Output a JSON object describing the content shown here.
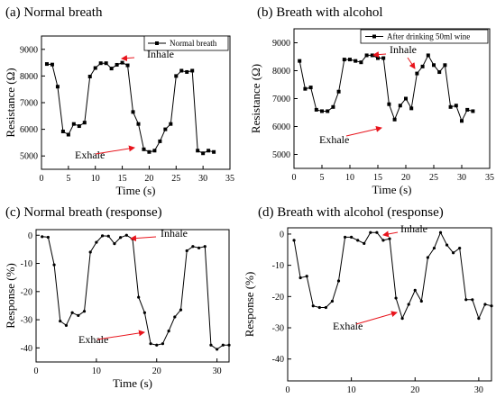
{
  "chart_data": [
    {
      "type": "line",
      "title": "(a) Normal breath",
      "xlabel": "Time (s)",
      "ylabel": "Resistance (Ω)",
      "xlim": [
        0,
        35
      ],
      "ylim": [
        4500,
        9500
      ],
      "xticks": [
        0,
        5,
        10,
        15,
        20,
        25,
        30,
        35
      ],
      "yticks": [
        5000,
        6000,
        7000,
        8000,
        9000
      ],
      "legend": "top-right",
      "series": [
        {
          "name": "Normal breath",
          "x": [
            1,
            2,
            3,
            4,
            5,
            6,
            7,
            8,
            9,
            10,
            11,
            12,
            13,
            14,
            15,
            16,
            17,
            18,
            19,
            20,
            21,
            22,
            23,
            24,
            25,
            26,
            27,
            28,
            29,
            30,
            31,
            32
          ],
          "y": [
            8450,
            8430,
            7600,
            5920,
            5800,
            6200,
            6120,
            6250,
            7980,
            8300,
            8480,
            8480,
            8280,
            8420,
            8500,
            8400,
            6650,
            6200,
            5250,
            5150,
            5200,
            5550,
            6000,
            6200,
            8000,
            8200,
            8150,
            8200,
            5200,
            5100,
            5200,
            5150
          ]
        }
      ],
      "annotations": [
        "Inhale",
        "Exhale"
      ]
    },
    {
      "type": "line",
      "title": "(b) Breath with alcohol",
      "xlabel": "Time (s)",
      "ylabel": "Resistance (Ω)",
      "xlim": [
        0,
        35
      ],
      "ylim": [
        4500,
        9500
      ],
      "xticks": [
        0,
        5,
        10,
        15,
        20,
        25,
        30,
        35
      ],
      "yticks": [
        5000,
        6000,
        7000,
        8000,
        9000
      ],
      "legend": "top-right",
      "series": [
        {
          "name": "After drinking 50ml wine",
          "x": [
            1,
            2,
            3,
            4,
            5,
            6,
            7,
            8,
            9,
            10,
            11,
            12,
            13,
            14,
            15,
            16,
            17,
            18,
            19,
            20,
            21,
            22,
            23,
            24,
            25,
            26,
            27,
            28,
            29,
            30,
            31,
            32
          ],
          "y": [
            8350,
            7350,
            7400,
            6600,
            6550,
            6550,
            6700,
            7250,
            8400,
            8400,
            8350,
            8300,
            8550,
            8550,
            8450,
            8450,
            6800,
            6250,
            6750,
            7000,
            6650,
            7900,
            8150,
            8550,
            8200,
            7950,
            8200,
            6700,
            6750,
            6200,
            6600,
            6550
          ]
        }
      ],
      "annotations": [
        "Inhale",
        "Exhale"
      ]
    },
    {
      "type": "line",
      "title": "(c) Normal breath (response)",
      "xlabel": "Time (s)",
      "ylabel": "Response (%)",
      "xlim": [
        0,
        32
      ],
      "ylim": [
        -45,
        2
      ],
      "xticks": [
        0,
        10,
        20,
        30
      ],
      "yticks": [
        0,
        -10,
        -20,
        -30,
        -40
      ],
      "series": [
        {
          "x": [
            1,
            2,
            3,
            4,
            5,
            6,
            7,
            8,
            9,
            10,
            11,
            12,
            13,
            14,
            15,
            16,
            17,
            18,
            19,
            20,
            21,
            22,
            23,
            24,
            25,
            26,
            27,
            28,
            29,
            30,
            31,
            32
          ],
          "y": [
            -0.5,
            -0.7,
            -10.5,
            -30.5,
            -32,
            -27.5,
            -28.5,
            -27,
            -6,
            -2.5,
            -0.2,
            -0.3,
            -3,
            -0.8,
            0,
            -1.3,
            -22,
            -27.5,
            -38.5,
            -39,
            -38.5,
            -34,
            -29,
            -26.5,
            -5.5,
            -4,
            -4.5,
            -4,
            -39,
            -40.5,
            -39,
            -39
          ]
        }
      ],
      "annotations": [
        "Inhale",
        "Exhale"
      ]
    },
    {
      "type": "line",
      "title": "(d) Breath with alcohol (response)",
      "xlabel": "Time (s)",
      "ylabel": "Response (%)",
      "xlim": [
        0,
        32
      ],
      "ylim": [
        -47,
        2
      ],
      "xticks": [
        0,
        10,
        20,
        30
      ],
      "yticks": [
        0,
        -10,
        -20,
        -30,
        -40
      ],
      "series": [
        {
          "x": [
            1,
            2,
            3,
            4,
            5,
            6,
            7,
            8,
            9,
            10,
            11,
            12,
            13,
            14,
            15,
            16,
            17,
            18,
            19,
            20,
            21,
            22,
            23,
            24,
            25,
            26,
            27,
            28,
            29,
            30,
            31,
            32
          ],
          "y": [
            -2,
            -14,
            -13.5,
            -23,
            -23.5,
            -23.5,
            -21.5,
            -15,
            -1,
            -1,
            -2,
            -3,
            0.5,
            0.5,
            -2,
            -1.5,
            -20.5,
            -27,
            -22.5,
            -18,
            -21.5,
            -7.5,
            -4.5,
            0.5,
            -3.5,
            -6,
            -4.5,
            -21,
            -21,
            -27,
            -22.5,
            -23
          ]
        }
      ],
      "annotations": [
        "Inhale",
        "Exhale"
      ]
    }
  ]
}
